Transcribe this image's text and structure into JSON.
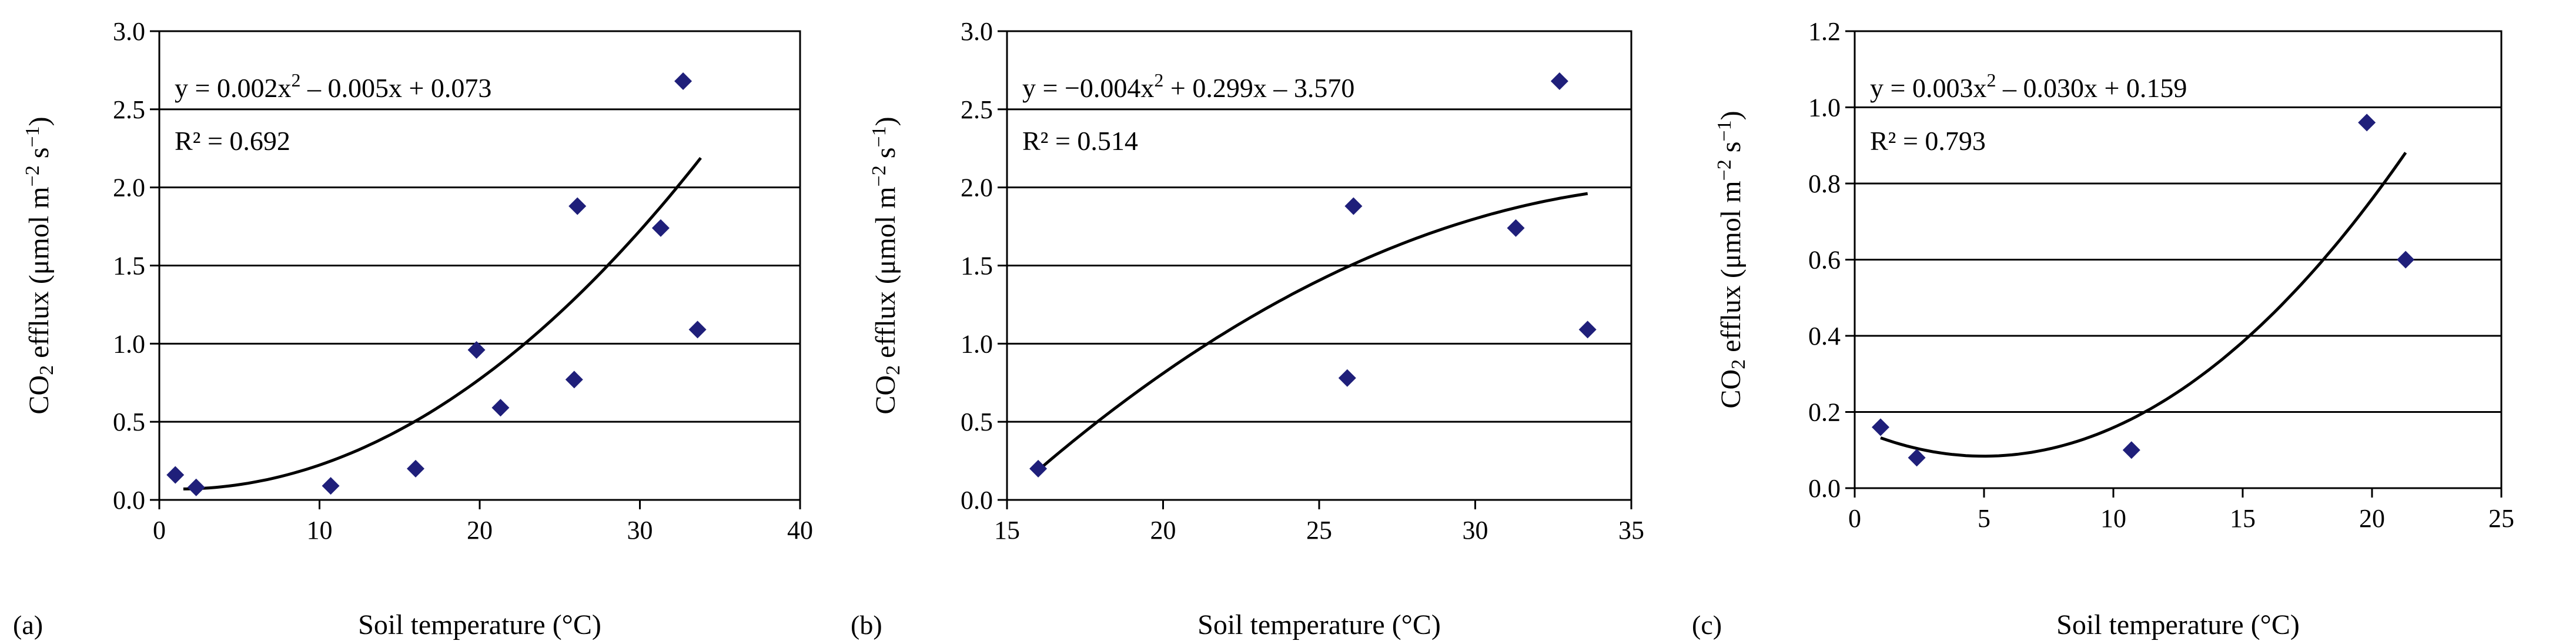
{
  "colors": {
    "marker": "#1f1f7a",
    "line": "#000000",
    "grid": "#000000"
  },
  "chart_data": [
    {
      "type": "scatter",
      "panel_label": "(a)",
      "xlabel": "Soil temperature (°C)",
      "ylabel": {
        "text": "CO",
        "sub": "2",
        "rest": " efflux (μmol m",
        "sup1": "−2",
        "mid": " s",
        "sup2": "−1",
        "end": ")"
      },
      "xlim": [
        0,
        40
      ],
      "ylim": [
        0,
        3
      ],
      "xticks": [
        0,
        10,
        20,
        30,
        40
      ],
      "yticks": [
        0,
        0.5,
        1,
        1.5,
        2,
        2.5,
        3
      ],
      "xtick_labels": [
        "0",
        "10",
        "20",
        "30",
        "40"
      ],
      "ytick_labels": [
        "0.0",
        "0.5",
        "1.0",
        "1.5",
        "2.0",
        "2.5",
        "3.0"
      ],
      "points": [
        [
          1.0,
          0.16
        ],
        [
          2.3,
          0.08
        ],
        [
          10.7,
          0.09
        ],
        [
          16.0,
          0.2
        ],
        [
          19.8,
          0.96
        ],
        [
          21.3,
          0.59
        ],
        [
          25.9,
          0.77
        ],
        [
          26.1,
          1.88
        ],
        [
          31.3,
          1.74
        ],
        [
          32.7,
          2.68
        ],
        [
          33.6,
          1.09
        ]
      ],
      "fit": {
        "coeffs": [
          0.002,
          -0.005,
          0.073
        ],
        "x_range": [
          1.5,
          33.8
        ]
      },
      "equation": {
        "p1": "y = 0.002x",
        "s1": "2",
        "p2": " – 0.005x + 0.073"
      },
      "r2": "R² = 0.692"
    },
    {
      "type": "scatter",
      "panel_label": "(b)",
      "xlabel": "Soil temperature (°C)",
      "ylabel": {
        "text": "CO",
        "sub": "2",
        "rest": " efflux (μmol m",
        "sup1": "−2",
        "mid": " s",
        "sup2": "−1",
        "end": ")"
      },
      "xlim": [
        15,
        35
      ],
      "ylim": [
        0,
        3
      ],
      "xticks": [
        15,
        20,
        25,
        30,
        35
      ],
      "yticks": [
        0,
        0.5,
        1,
        1.5,
        2,
        2.5,
        3
      ],
      "xtick_labels": [
        "15",
        "20",
        "25",
        "30",
        "35"
      ],
      "ytick_labels": [
        "0.0",
        "0.5",
        "1.0",
        "1.5",
        "2.0",
        "2.5",
        "3.0"
      ],
      "points": [
        [
          16.0,
          0.2
        ],
        [
          25.9,
          0.78
        ],
        [
          26.1,
          1.88
        ],
        [
          31.3,
          1.74
        ],
        [
          32.7,
          2.68
        ],
        [
          33.6,
          1.09
        ]
      ],
      "fit": {
        "coeffs": [
          -0.004,
          0.299,
          -3.57
        ],
        "x_range": [
          16.0,
          33.6
        ]
      },
      "equation": {
        "p1": "y = −0.004x",
        "s1": "2",
        "p2": " + 0.299x – 3.570"
      },
      "r2": "R² = 0.514"
    },
    {
      "type": "scatter",
      "panel_label": "(c)",
      "xlabel": "Soil temperature (°C)",
      "ylabel": {
        "text": "CO",
        "sub": "2",
        "rest": " efflux (μmol m",
        "sup1": "−2",
        "mid": " s",
        "sup2": "−1",
        "end": ")"
      },
      "xlim": [
        0,
        25
      ],
      "ylim": [
        0,
        1.2
      ],
      "xticks": [
        0,
        5,
        10,
        15,
        20,
        25
      ],
      "yticks": [
        0,
        0.2,
        0.4,
        0.6,
        0.8,
        1.0,
        1.2
      ],
      "xtick_labels": [
        "0",
        "5",
        "10",
        "15",
        "20",
        "25"
      ],
      "ytick_labels": [
        "0.0",
        "0.2",
        "0.4",
        "0.6",
        "0.8",
        "1.0",
        "1.2"
      ],
      "points": [
        [
          1.0,
          0.16
        ],
        [
          2.4,
          0.08
        ],
        [
          10.7,
          0.1
        ],
        [
          19.8,
          0.96
        ],
        [
          21.3,
          0.6
        ]
      ],
      "fit": {
        "coeffs": [
          0.003,
          -0.03,
          0.159
        ],
        "x_range": [
          1.0,
          21.3
        ]
      },
      "equation": {
        "p1": "y = 0.003x",
        "s1": "2",
        "p2": " – 0.030x + 0.159"
      },
      "r2": "R² = 0.793"
    }
  ]
}
